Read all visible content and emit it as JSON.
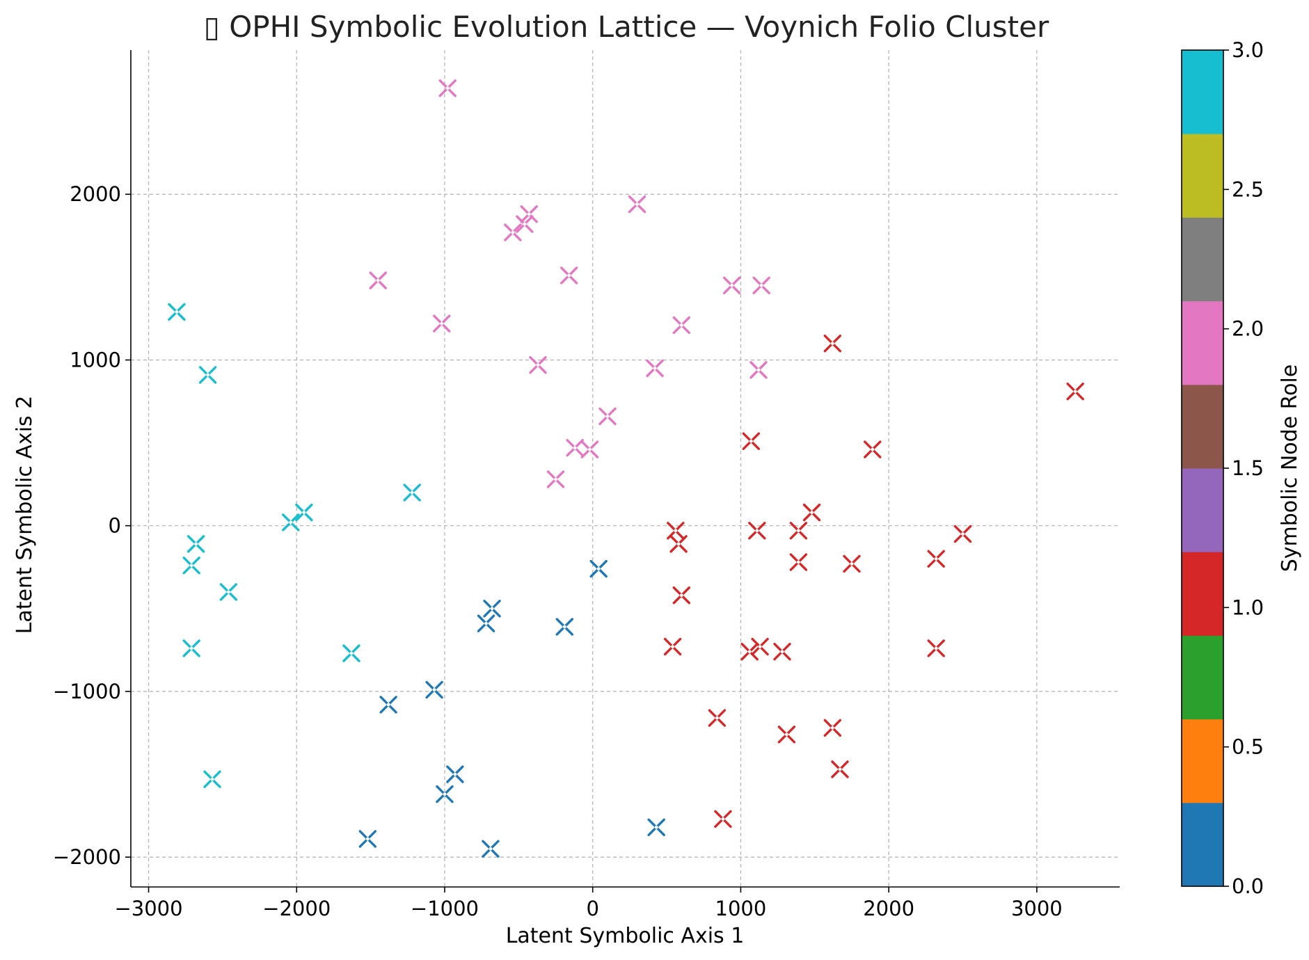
{
  "chart_data": {
    "type": "scatter",
    "title": "▯ OPHI Symbolic Evolution Lattice — Voynich Folio Cluster",
    "xlabel": "Latent Symbolic Axis 1",
    "ylabel": "Latent Symbolic Axis 2",
    "xlim": [
      -3120,
      3560
    ],
    "ylim": [
      -2180,
      2870
    ],
    "xticks": [
      -3000,
      -2000,
      -1000,
      0,
      1000,
      2000,
      3000
    ],
    "xtick_labels": [
      "−3000",
      "−2000",
      "−1000",
      "0",
      "1000",
      "2000",
      "3000"
    ],
    "yticks": [
      -2000,
      -1000,
      0,
      1000,
      2000
    ],
    "ytick_labels": [
      "−2000",
      "−1000",
      "0",
      "1000",
      "2000"
    ],
    "grid": true,
    "marker": "x",
    "colorbar": {
      "label": "Symbolic Node Role",
      "range": [
        0,
        3
      ],
      "ticks": [
        "0.0",
        "0.5",
        "1.0",
        "1.5",
        "2.0",
        "2.5",
        "3.0"
      ],
      "colors": [
        "#1f77b4",
        "#ff7f0e",
        "#2ca02c",
        "#d62728",
        "#9467bd",
        "#8c564b",
        "#e377c2",
        "#7f7f7f",
        "#bcbd22",
        "#17becf"
      ]
    },
    "series": [
      {
        "role": 0,
        "color": "#1f77b4",
        "points": [
          [
            40,
            -260
          ],
          [
            -680,
            -500
          ],
          [
            -720,
            -590
          ],
          [
            -190,
            -610
          ],
          [
            -1070,
            -990
          ],
          [
            -1380,
            -1080
          ],
          [
            -930,
            -1500
          ],
          [
            -1000,
            -1620
          ],
          [
            -1520,
            -1890
          ],
          [
            -690,
            -1950
          ],
          [
            430,
            -1820
          ]
        ]
      },
      {
        "role": 1,
        "color": "#d62728",
        "points": [
          [
            1620,
            1100
          ],
          [
            3260,
            810
          ],
          [
            1070,
            510
          ],
          [
            1890,
            460
          ],
          [
            1480,
            80
          ],
          [
            560,
            -30
          ],
          [
            1110,
            -30
          ],
          [
            1390,
            -30
          ],
          [
            2500,
            -50
          ],
          [
            580,
            -110
          ],
          [
            1390,
            -220
          ],
          [
            1750,
            -230
          ],
          [
            2320,
            -200
          ],
          [
            600,
            -420
          ],
          [
            540,
            -730
          ],
          [
            1060,
            -760
          ],
          [
            1130,
            -730
          ],
          [
            1280,
            -760
          ],
          [
            2320,
            -740
          ],
          [
            840,
            -1160
          ],
          [
            1310,
            -1260
          ],
          [
            1620,
            -1220
          ],
          [
            1670,
            -1470
          ],
          [
            880,
            -1770
          ]
        ]
      },
      {
        "role": 2,
        "color": "#e377c2",
        "points": [
          [
            -980,
            2640
          ],
          [
            300,
            1940
          ],
          [
            -430,
            1880
          ],
          [
            -460,
            1820
          ],
          [
            -540,
            1770
          ],
          [
            -1450,
            1480
          ],
          [
            -160,
            1510
          ],
          [
            940,
            1450
          ],
          [
            1140,
            1450
          ],
          [
            -1020,
            1220
          ],
          [
            600,
            1210
          ],
          [
            -370,
            970
          ],
          [
            420,
            950
          ],
          [
            1120,
            940
          ],
          [
            100,
            660
          ],
          [
            -120,
            470
          ],
          [
            -20,
            460
          ],
          [
            -250,
            280
          ]
        ]
      },
      {
        "role": 3,
        "color": "#17becf",
        "points": [
          [
            -2810,
            1290
          ],
          [
            -2600,
            910
          ],
          [
            -1220,
            200
          ],
          [
            -1950,
            80
          ],
          [
            -2040,
            20
          ],
          [
            -2680,
            -110
          ],
          [
            -2710,
            -240
          ],
          [
            -2460,
            -400
          ],
          [
            -2710,
            -740
          ],
          [
            -1630,
            -770
          ],
          [
            -2570,
            -1530
          ]
        ]
      }
    ]
  }
}
